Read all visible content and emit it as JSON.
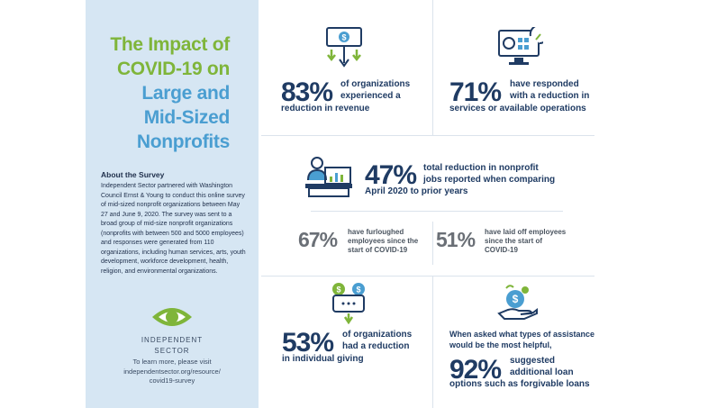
{
  "sidebar": {
    "title_lines": [
      "The Impact of",
      "COVID-19 on",
      "Large and",
      "Mid-Sized",
      "Nonprofits"
    ],
    "about_heading": "About the Survey",
    "about_text": "Independent Sector partnered with Washington Council Ernst & Young to conduct this online survey of mid-sized nonprofit organizations between May 27 and June 9, 2020. The survey was sent to a broad group of mid-size nonprofit organizations (nonprofits with between 500 and 5000 employees) and responses were generated from 110 organizations, including human services, arts, youth development, workforce development, health, religion, and environmental organizations.",
    "logo_line1": "INDEPENDENT",
    "logo_line2": "SECTOR",
    "learn_more_lines": [
      "To learn more, please visit",
      "independentsector.org/resource/",
      "covid19-survey"
    ]
  },
  "stats": {
    "revenue": {
      "pct": "83%",
      "line1": "of organizations",
      "line2": "experienced a",
      "line3": "reduction in revenue"
    },
    "services": {
      "pct": "71%",
      "line1": "have responded",
      "line2": "with a reduction in",
      "line3": "services or available operations"
    },
    "jobs": {
      "pct": "47%",
      "line1": "total reduction in nonprofit",
      "line2": "jobs reported when comparing",
      "line3": "April 2020 to prior years"
    },
    "furlough": {
      "pct": "67%",
      "line1": "have furloughed",
      "line2": "employees since the",
      "line3": "start of COVID-19"
    },
    "layoff": {
      "pct": "51%",
      "line1": "have laid off employees",
      "line2": "since the start of",
      "line3": "COVID-19"
    },
    "giving": {
      "pct": "53%",
      "line1": "of organizations",
      "line2": "had a reduction",
      "line3": "in individual giving"
    },
    "assistance": {
      "intro1": "When asked what types of assistance",
      "intro2": "would be the most helpful,",
      "pct": "92%",
      "line1": "suggested",
      "line2": "additional loan",
      "line3": "options such as forgivable loans"
    }
  },
  "colors": {
    "navy": "#1f3b63",
    "green": "#7fb53a",
    "lightblue": "#4a9ed1",
    "panel": "#d6e6f3",
    "gray": "#6a6f76"
  }
}
